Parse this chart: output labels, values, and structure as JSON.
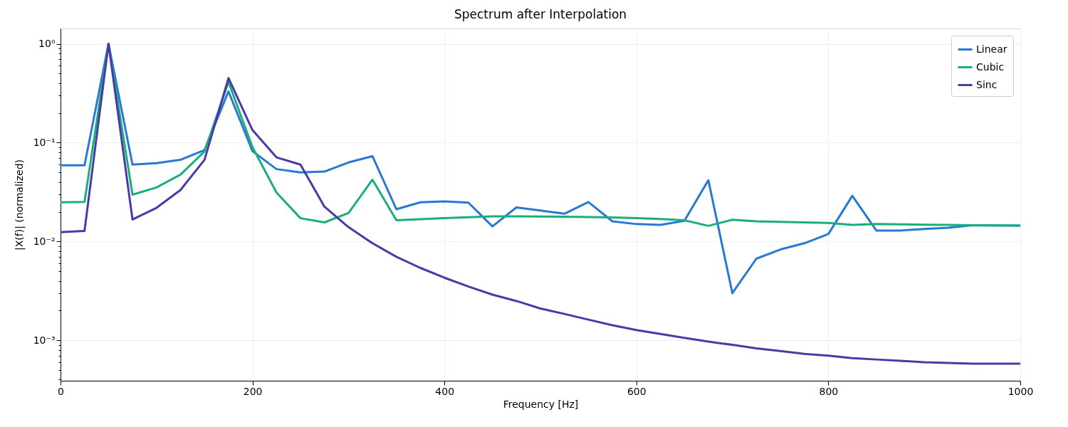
{
  "chart_data": {
    "type": "line",
    "title": "Spectrum after Interpolation",
    "xlabel": "Frequency [Hz]",
    "ylabel": "|X(f)| (normalized)",
    "x": [
      0,
      25,
      50,
      75,
      100,
      125,
      150,
      175,
      200,
      225,
      250,
      275,
      300,
      325,
      350,
      375,
      400,
      425,
      450,
      475,
      500,
      525,
      550,
      575,
      600,
      625,
      650,
      675,
      700,
      725,
      750,
      775,
      800,
      825,
      850,
      875,
      900,
      925,
      950,
      975,
      1000
    ],
    "series": [
      {
        "name": "Linear",
        "color": "#2878d6",
        "values": [
          0.059,
          0.059,
          1.0,
          0.06,
          0.062,
          0.067,
          0.084,
          0.33,
          0.082,
          0.054,
          0.05,
          0.051,
          0.063,
          0.073,
          0.0212,
          0.0249,
          0.0254,
          0.0247,
          0.0142,
          0.0221,
          0.0206,
          0.0191,
          0.0251,
          0.016,
          0.015,
          0.0147,
          0.0162,
          0.0417,
          0.003,
          0.0067,
          0.0083,
          0.0096,
          0.0119,
          0.029,
          0.0129,
          0.0129,
          0.0134,
          0.0138,
          0.0146,
          0.0145,
          0.0145
        ]
      },
      {
        "name": "Cubic",
        "color": "#1aaf7a",
        "values": [
          0.0249,
          0.0251,
          1.0,
          0.0298,
          0.0352,
          0.0475,
          0.0814,
          0.41,
          0.09,
          0.0313,
          0.0172,
          0.0156,
          0.0194,
          0.0422,
          0.0164,
          0.0168,
          0.0172,
          0.0176,
          0.018,
          0.018,
          0.0179,
          0.0178,
          0.0177,
          0.0175,
          0.0172,
          0.0169,
          0.0164,
          0.0144,
          0.0166,
          0.016,
          0.0158,
          0.0156,
          0.0154,
          0.0147,
          0.015,
          0.0149,
          0.0148,
          0.0147,
          0.0146,
          0.0146,
          0.0145
        ]
      },
      {
        "name": "Sinc",
        "color": "#4a3aa8",
        "values": [
          0.0124,
          0.0128,
          1.0,
          0.0167,
          0.0219,
          0.0332,
          0.067,
          0.45,
          0.134,
          0.071,
          0.06,
          0.0225,
          0.014,
          0.0096,
          0.007,
          0.0054,
          0.0043,
          0.0035,
          0.0029,
          0.0025,
          0.0021,
          0.00185,
          0.00162,
          0.00142,
          0.00127,
          0.00116,
          0.00106,
          0.00097,
          0.0009,
          0.00083,
          0.00078,
          0.00073,
          0.0007,
          0.00066,
          0.00064,
          0.00062,
          0.0006,
          0.00059,
          0.00058,
          0.00058,
          0.00058
        ]
      }
    ],
    "xlim": [
      0,
      1000
    ],
    "xticks": [
      0,
      200,
      400,
      600,
      800,
      1000
    ],
    "ylim": [
      0.00039,
      1.43
    ],
    "yticks": [
      {
        "value": 0.0004,
        "label": null
      },
      {
        "value": 0.0005,
        "label": null
      },
      {
        "value": 0.0006,
        "label": null
      },
      {
        "value": 0.0007,
        "label": null
      },
      {
        "value": 0.0008,
        "label": null
      },
      {
        "value": 0.0009,
        "label": null
      },
      {
        "value": 0.001,
        "label": "10⁻³"
      },
      {
        "value": 0.002,
        "label": null
      },
      {
        "value": 0.003,
        "label": null
      },
      {
        "value": 0.004,
        "label": null
      },
      {
        "value": 0.005,
        "label": null
      },
      {
        "value": 0.006,
        "label": null
      },
      {
        "value": 0.007,
        "label": null
      },
      {
        "value": 0.008,
        "label": null
      },
      {
        "value": 0.009,
        "label": null
      },
      {
        "value": 0.01,
        "label": "10⁻²"
      },
      {
        "value": 0.02,
        "label": null
      },
      {
        "value": 0.03,
        "label": null
      },
      {
        "value": 0.04,
        "label": null
      },
      {
        "value": 0.05,
        "label": null
      },
      {
        "value": 0.06,
        "label": null
      },
      {
        "value": 0.07,
        "label": null
      },
      {
        "value": 0.08,
        "label": null
      },
      {
        "value": 0.09,
        "label": null
      },
      {
        "value": 0.1,
        "label": "10⁻¹"
      },
      {
        "value": 0.2,
        "label": null
      },
      {
        "value": 0.3,
        "label": null
      },
      {
        "value": 0.4,
        "label": null
      },
      {
        "value": 0.5,
        "label": null
      },
      {
        "value": 0.6,
        "label": null
      },
      {
        "value": 0.7,
        "label": null
      },
      {
        "value": 0.8,
        "label": null
      },
      {
        "value": 0.9,
        "label": null
      },
      {
        "value": 1,
        "label": "10⁰"
      }
    ],
    "log": "y",
    "grid": true,
    "legend": "top right",
    "marker": "none",
    "line_style": "solid"
  }
}
